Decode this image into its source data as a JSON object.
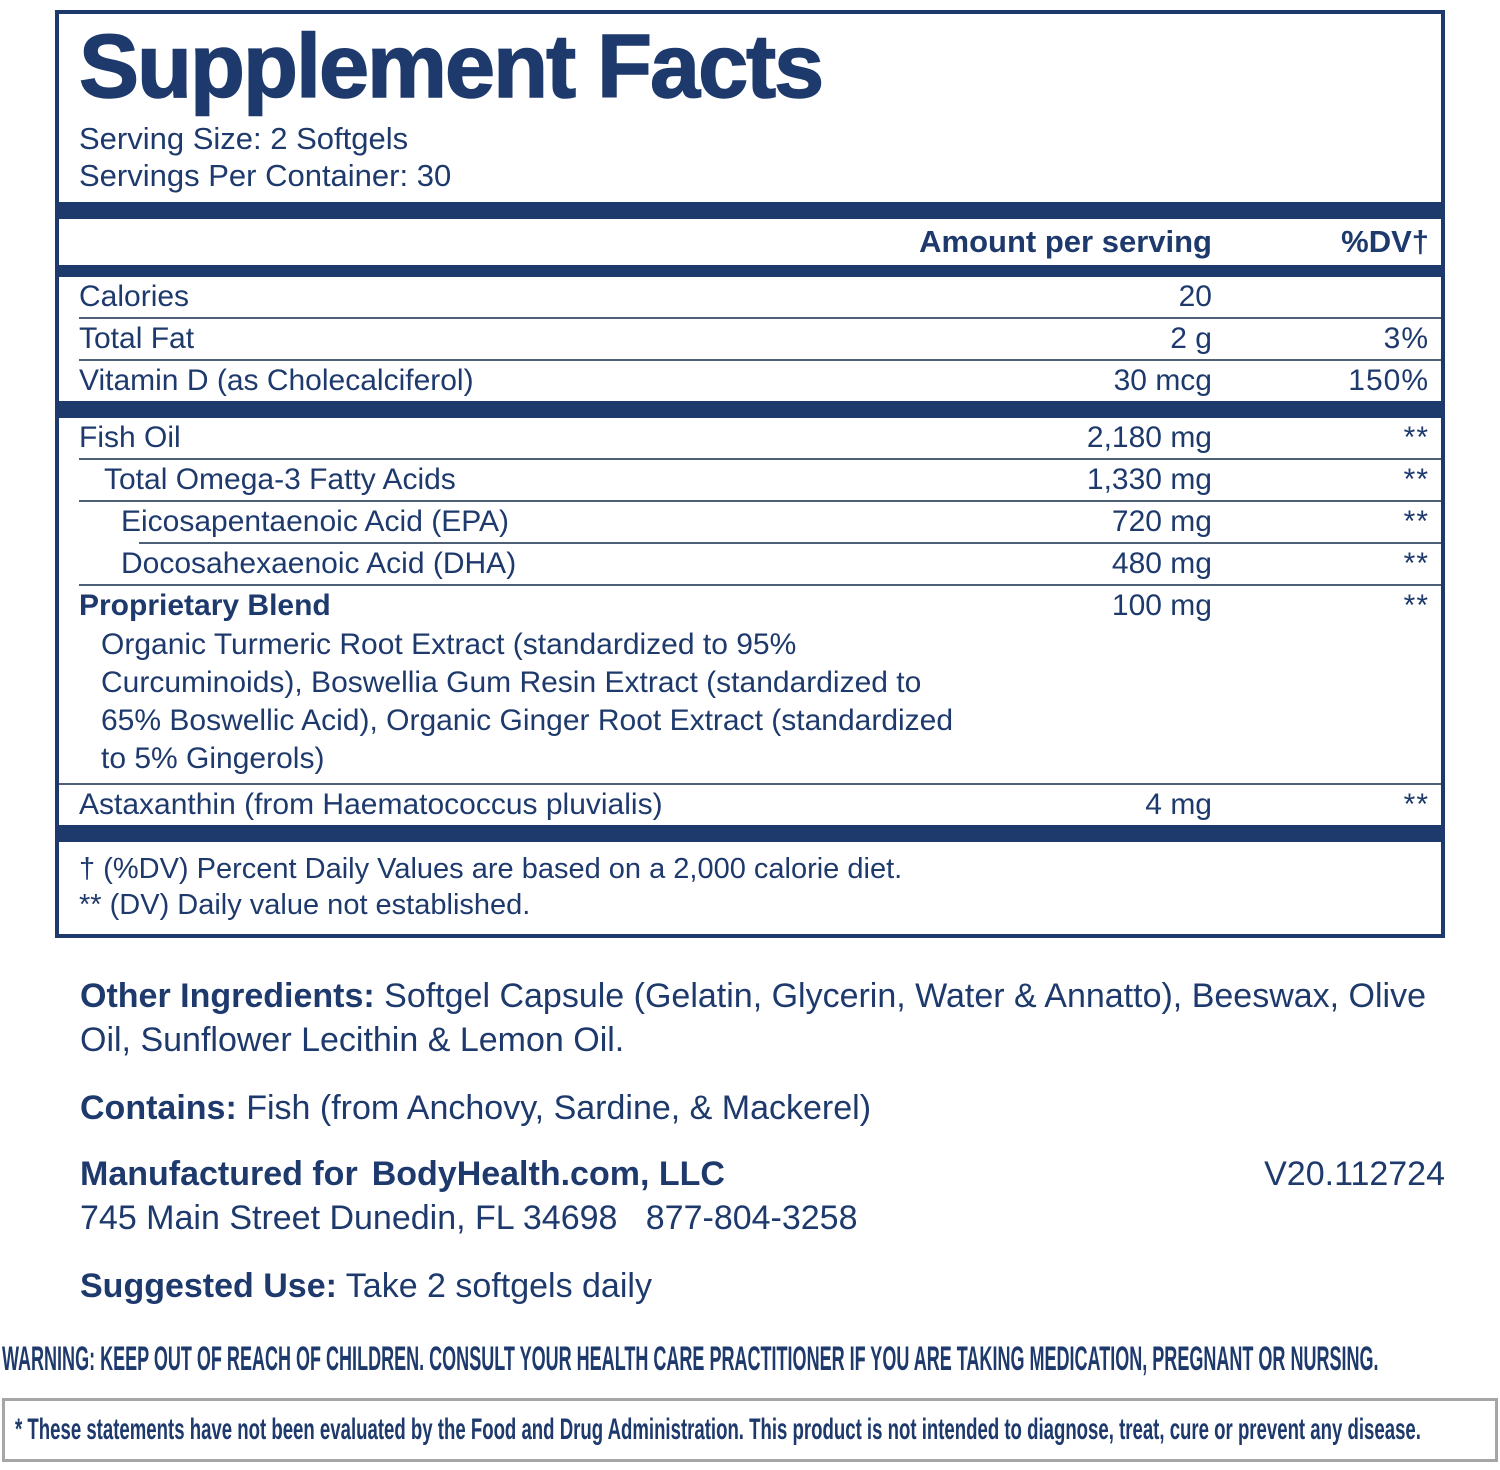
{
  "panel": {
    "title": "Supplement Facts",
    "serving_size": "Serving Size: 2 Softgels",
    "servings_per_container": "Servings Per Container: 30",
    "col_amount": "Amount per serving",
    "col_dv": "%DV†",
    "rows": [
      {
        "label": "Calories",
        "amount": "20",
        "dv": "",
        "indent": 0,
        "bold": false,
        "sep": "none"
      },
      {
        "label": "Total Fat",
        "amount": "2 g",
        "dv": "3%",
        "indent": 0,
        "bold": false,
        "sep": "hair"
      },
      {
        "label": "Vitamin D (as Cholecalciferol)",
        "amount": "30 mcg",
        "dv": "150%",
        "indent": 0,
        "bold": false,
        "sep": "hair"
      },
      {
        "label": "Fish Oil",
        "amount": "2,180 mg",
        "dv": "**",
        "indent": 0,
        "bold": false,
        "sep": "thick"
      },
      {
        "label": "Total Omega-3 Fatty Acids",
        "amount": "1,330 mg",
        "dv": "**",
        "indent": 1,
        "bold": false,
        "sep": "hair"
      },
      {
        "label": "Eicosapentaenoic Acid (EPA)",
        "amount": "720 mg",
        "dv": "**",
        "indent": 2,
        "bold": false,
        "sep": "hair"
      },
      {
        "label": "Docosahexaenoic Acid (DHA)",
        "amount": "480 mg",
        "dv": "**",
        "indent": 2,
        "bold": false,
        "sep": "hair2"
      },
      {
        "label": "Proprietary Blend",
        "amount": "100 mg",
        "dv": "**",
        "indent": 0,
        "bold": true,
        "sep": "hair",
        "description": "Organic Turmeric Root Extract (standardized to 95% Curcuminoids), Boswellia Gum Resin Extract (standardized to 65% Boswellic Acid), Organic Ginger Root Extract (standardized to 5% Gingerols)"
      },
      {
        "label": "Astaxanthin (from Haematococcus pluvialis)",
        "amount": "4 mg",
        "dv": "**",
        "indent": 0,
        "bold": false,
        "sep": "hairfull"
      }
    ],
    "footnotes": [
      "† (%DV) Percent Daily Values are based on a 2,000 calorie diet.",
      "** (DV) Daily value not established."
    ]
  },
  "info": {
    "other_ingredients_label": "Other Ingredients:",
    "other_ingredients": " Softgel Capsule (Gelatin, Glycerin, Water & Annatto), Beeswax, Olive Oil, Sunflower Lecithin & Lemon Oil.",
    "contains_label": "Contains:",
    "contains": " Fish (from Anchovy, Sardine, & Mackerel)",
    "manufactured_label": "Manufactured for",
    "manufacturer_name": "BodyHealth.com, LLC",
    "version_code": "V20.112724",
    "address": "745 Main Street Dunedin, FL 34698   877-804-3258",
    "suggested_use_label": "Suggested Use:",
    "suggested_use": " Take 2 softgels daily"
  },
  "warning": "WARNING: KEEP OUT OF REACH OF CHILDREN. CONSULT YOUR HEALTH CARE PRACTITIONER IF YOU ARE TAKING MEDICATION, PREGNANT OR NURSING.",
  "disclaimer": "* These statements have not been evaluated by the Food and Drug Administration. This product is not intended to diagnose, treat, cure or prevent any disease.",
  "colors": {
    "navy": "#1e3a6d",
    "hairline": "#4e5f76",
    "disclaimer_border": "#a6a6a6"
  }
}
